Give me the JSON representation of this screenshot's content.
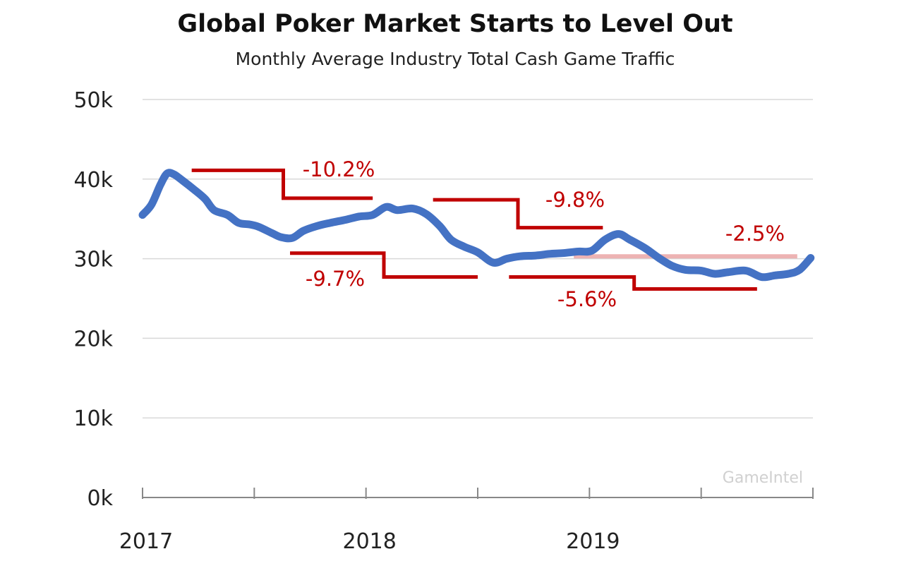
{
  "chart_data": {
    "type": "line",
    "title": "Global Poker Market Starts to Level Out",
    "subtitle": "Monthly Average Industry Total Cash Game Traffic",
    "xlabel": "",
    "ylabel": "",
    "xlim": [
      2017,
      2020
    ],
    "ylim": [
      0,
      50
    ],
    "x_ticks": [
      2017,
      2017.5,
      2018,
      2018.5,
      2019,
      2019.5,
      2020
    ],
    "x_tick_labels": [
      "2017",
      "2018",
      "2019"
    ],
    "y_tick_labels": [
      "0k",
      "10k",
      "20k",
      "30k",
      "40k",
      "50k"
    ],
    "grid": "horizontal",
    "watermark": "GameIntel",
    "series": [
      {
        "color": "#4472c4",
        "x": [
          2017.0,
          2017.04,
          2017.08,
          2017.11,
          2017.14,
          2017.18,
          2017.23,
          2017.28,
          2017.32,
          2017.38,
          2017.43,
          2017.48,
          2017.52,
          2017.58,
          2017.62,
          2017.67,
          2017.72,
          2017.78,
          2017.84,
          2017.91,
          2017.97,
          2018.03,
          2018.09,
          2018.14,
          2018.21,
          2018.27,
          2018.33,
          2018.38,
          2018.44,
          2018.5,
          2018.57,
          2018.63,
          2018.69,
          2018.76,
          2018.82,
          2018.88,
          2018.95,
          2019.01,
          2019.07,
          2019.13,
          2019.18,
          2019.25,
          2019.31,
          2019.37,
          2019.43,
          2019.5,
          2019.56,
          2019.62,
          2019.7,
          2019.77,
          2019.83,
          2019.89,
          2019.94,
          2019.99
        ],
        "y": [
          35.5,
          36.8,
          39.3,
          40.7,
          40.6,
          39.8,
          38.7,
          37.5,
          36.1,
          35.5,
          34.5,
          34.3,
          34.0,
          33.2,
          32.7,
          32.6,
          33.5,
          34.1,
          34.5,
          34.9,
          35.3,
          35.5,
          36.5,
          36.1,
          36.3,
          35.6,
          34.1,
          32.4,
          31.5,
          30.8,
          29.5,
          30.0,
          30.3,
          30.4,
          30.6,
          30.7,
          30.9,
          31.0,
          32.4,
          33.1,
          32.4,
          31.3,
          30.1,
          29.1,
          28.6,
          28.5,
          28.1,
          28.3,
          28.5,
          27.7,
          27.9,
          28.1,
          28.6,
          30.1
        ]
      }
    ],
    "annotations": [
      {
        "label": "-10.2%",
        "color": "#c00000",
        "x": [
          2017.22,
          2017.63,
          2018.03
        ],
        "levels": [
          41.1,
          37.6
        ]
      },
      {
        "label": "-9.7%",
        "color": "#c00000",
        "x": [
          2017.66,
          2018.08,
          2018.5
        ],
        "levels": [
          30.7,
          27.7
        ]
      },
      {
        "label": "-9.8%",
        "color": "#c00000",
        "x": [
          2018.3,
          2018.68,
          2019.06
        ],
        "levels": [
          37.4,
          33.9
        ]
      },
      {
        "label": "-5.6%",
        "color": "#c00000",
        "x": [
          2018.64,
          2019.2,
          2019.75
        ],
        "levels": [
          27.7,
          26.2
        ]
      },
      {
        "label": "-2.5%",
        "color": "#e8a0a0",
        "x": [
          2018.93,
          2019.93
        ],
        "levels": [
          30.3
        ]
      }
    ]
  }
}
